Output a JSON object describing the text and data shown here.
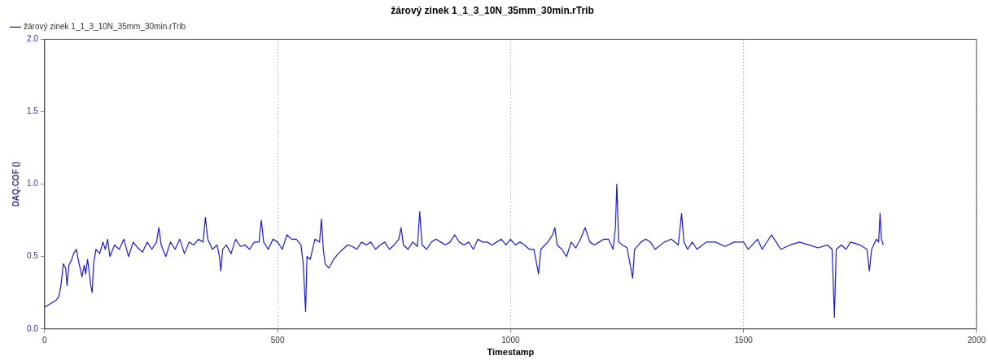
{
  "chart_data": {
    "type": "line",
    "title": "žárový zinek 1_1_3_10N_35mm_30min.rTrib",
    "xlabel": "Timestamp",
    "ylabel": "DAQ.COF ()",
    "xlim": [
      0,
      2000
    ],
    "xticks": [
      0,
      500,
      1000,
      1500,
      2000
    ],
    "ylim": [
      0,
      2
    ],
    "yticks": [
      {
        "value": 0,
        "label": "0.0"
      },
      {
        "value": 0.5,
        "label": "0.5"
      },
      {
        "value": 1,
        "label": "1.0"
      },
      {
        "value": 1.5,
        "label": "1.5"
      },
      {
        "value": 2,
        "label": "2.0"
      }
    ],
    "grid": "x",
    "legend": "top left",
    "marker": "none",
    "line_style": "solid",
    "series": [
      {
        "name": "žárový zinek 1_1_3_10N_35mm_30min.rTrib",
        "color": "#1a1ad6",
        "x": [
          0,
          5,
          15,
          25,
          30,
          35,
          40,
          45,
          48,
          52,
          58,
          62,
          68,
          72,
          76,
          80,
          85,
          88,
          92,
          95,
          99,
          102,
          105,
          110,
          118,
          125,
          130,
          135,
          140,
          150,
          160,
          170,
          180,
          190,
          200,
          210,
          220,
          230,
          240,
          245,
          250,
          260,
          270,
          280,
          290,
          300,
          310,
          320,
          330,
          340,
          345,
          350,
          360,
          370,
          375,
          378,
          382,
          390,
          400,
          410,
          420,
          430,
          440,
          450,
          460,
          465,
          470,
          480,
          490,
          500,
          510,
          520,
          530,
          540,
          550,
          555,
          560,
          563,
          570,
          580,
          590,
          594,
          598,
          602,
          610,
          620,
          630,
          640,
          650,
          660,
          670,
          680,
          690,
          700,
          710,
          720,
          730,
          740,
          750,
          760,
          765,
          770,
          780,
          790,
          800,
          805,
          810,
          820,
          830,
          840,
          850,
          860,
          870,
          880,
          890,
          900,
          910,
          920,
          930,
          940,
          950,
          960,
          970,
          980,
          990,
          1000,
          1010,
          1020,
          1030,
          1040,
          1050,
          1060,
          1065,
          1080,
          1090,
          1095,
          1100,
          1110,
          1120,
          1130,
          1140,
          1150,
          1160,
          1170,
          1180,
          1190,
          1200,
          1210,
          1220,
          1225,
          1228,
          1232,
          1240,
          1250,
          1262,
          1266,
          1280,
          1290,
          1300,
          1310,
          1330,
          1345,
          1360,
          1367,
          1372,
          1380,
          1390,
          1400,
          1420,
          1440,
          1460,
          1480,
          1500,
          1510,
          1530,
          1540,
          1560,
          1570,
          1580,
          1600,
          1620,
          1640,
          1660,
          1680,
          1690,
          1695,
          1699,
          1710,
          1720,
          1730,
          1750,
          1765,
          1770,
          1775,
          1785,
          1790,
          1793,
          1796,
          1800
        ],
        "values": [
          0.15,
          0.16,
          0.18,
          0.2,
          0.22,
          0.3,
          0.45,
          0.42,
          0.3,
          0.44,
          0.48,
          0.52,
          0.55,
          0.48,
          0.42,
          0.36,
          0.44,
          0.38,
          0.48,
          0.41,
          0.3,
          0.25,
          0.45,
          0.55,
          0.52,
          0.6,
          0.55,
          0.62,
          0.5,
          0.58,
          0.55,
          0.62,
          0.5,
          0.6,
          0.56,
          0.53,
          0.6,
          0.55,
          0.6,
          0.7,
          0.58,
          0.5,
          0.6,
          0.55,
          0.62,
          0.52,
          0.6,
          0.58,
          0.62,
          0.6,
          0.77,
          0.62,
          0.55,
          0.58,
          0.5,
          0.4,
          0.55,
          0.58,
          0.52,
          0.62,
          0.57,
          0.58,
          0.55,
          0.6,
          0.6,
          0.75,
          0.6,
          0.55,
          0.62,
          0.6,
          0.55,
          0.65,
          0.62,
          0.62,
          0.58,
          0.45,
          0.12,
          0.5,
          0.48,
          0.62,
          0.6,
          0.76,
          0.55,
          0.45,
          0.42,
          0.48,
          0.52,
          0.55,
          0.58,
          0.57,
          0.55,
          0.6,
          0.58,
          0.6,
          0.55,
          0.58,
          0.6,
          0.55,
          0.58,
          0.62,
          0.7,
          0.58,
          0.55,
          0.6,
          0.57,
          0.81,
          0.58,
          0.55,
          0.6,
          0.62,
          0.6,
          0.58,
          0.6,
          0.65,
          0.6,
          0.58,
          0.6,
          0.55,
          0.62,
          0.6,
          0.6,
          0.58,
          0.6,
          0.62,
          0.58,
          0.62,
          0.58,
          0.6,
          0.58,
          0.55,
          0.55,
          0.38,
          0.55,
          0.6,
          0.65,
          0.7,
          0.58,
          0.55,
          0.5,
          0.6,
          0.56,
          0.62,
          0.7,
          0.6,
          0.58,
          0.6,
          0.62,
          0.62,
          0.55,
          0.7,
          1.0,
          0.6,
          0.58,
          0.56,
          0.35,
          0.55,
          0.6,
          0.62,
          0.6,
          0.55,
          0.6,
          0.62,
          0.58,
          0.8,
          0.6,
          0.55,
          0.6,
          0.55,
          0.6,
          0.6,
          0.57,
          0.6,
          0.6,
          0.55,
          0.62,
          0.55,
          0.65,
          0.6,
          0.55,
          0.58,
          0.6,
          0.58,
          0.56,
          0.58,
          0.55,
          0.08,
          0.55,
          0.58,
          0.55,
          0.6,
          0.58,
          0.55,
          0.4,
          0.55,
          0.62,
          0.6,
          0.8,
          0.62,
          0.58
        ]
      }
    ]
  }
}
